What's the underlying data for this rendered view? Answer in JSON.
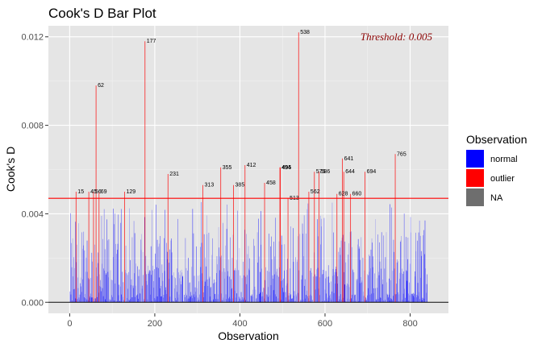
{
  "chart_data": {
    "type": "bar",
    "title": "Cook's D Bar Plot",
    "xlabel": "Observation",
    "ylabel": "Cook's D",
    "xlim": [
      -50,
      890
    ],
    "ylim": [
      -0.0005,
      0.0125
    ],
    "x_ticks": [
      0,
      200,
      400,
      600,
      800
    ],
    "x_tick_labels": [
      "0",
      "200",
      "400",
      "600",
      "800"
    ],
    "y_ticks": [
      0.0,
      0.004,
      0.008,
      0.012
    ],
    "y_tick_labels": [
      "0.000",
      "0.004",
      "0.008",
      "0.012"
    ],
    "threshold": 0.0047,
    "threshold_label": "Threshold: 0.005",
    "grid": true,
    "n_observations": 840,
    "legend": {
      "title": "Observation",
      "position": "right",
      "entries": [
        {
          "label": "normal",
          "color": "#0000ff"
        },
        {
          "label": "outlier",
          "color": "#ff0000"
        },
        {
          "label": "NA",
          "color": "#6e6e6e"
        }
      ]
    },
    "outliers": [
      {
        "obs": 15,
        "value": 0.005,
        "label": "15"
      },
      {
        "obs": 45,
        "value": 0.005,
        "label": "45"
      },
      {
        "obs": 56,
        "value": 0.005,
        "label": "56"
      },
      {
        "obs": 62,
        "value": 0.0098,
        "label": "62"
      },
      {
        "obs": 69,
        "value": 0.005,
        "label": "69"
      },
      {
        "obs": 129,
        "value": 0.005,
        "label": "129"
      },
      {
        "obs": 177,
        "value": 0.0118,
        "label": "177"
      },
      {
        "obs": 231,
        "value": 0.0058,
        "label": "231"
      },
      {
        "obs": 313,
        "value": 0.0053,
        "label": "313"
      },
      {
        "obs": 355,
        "value": 0.0061,
        "label": "355"
      },
      {
        "obs": 385,
        "value": 0.0053,
        "label": "385"
      },
      {
        "obs": 412,
        "value": 0.0062,
        "label": "412"
      },
      {
        "obs": 458,
        "value": 0.0054,
        "label": "458"
      },
      {
        "obs": 494,
        "value": 0.0061,
        "label": "494"
      },
      {
        "obs": 495,
        "value": 0.0061,
        "label": "495"
      },
      {
        "obs": 513,
        "value": 0.0047,
        "label": "513"
      },
      {
        "obs": 538,
        "value": 0.0122,
        "label": "538"
      },
      {
        "obs": 562,
        "value": 0.005,
        "label": "562"
      },
      {
        "obs": 575,
        "value": 0.0059,
        "label": "575"
      },
      {
        "obs": 586,
        "value": 0.0059,
        "label": "586"
      },
      {
        "obs": 628,
        "value": 0.0049,
        "label": "628"
      },
      {
        "obs": 641,
        "value": 0.0065,
        "label": "641"
      },
      {
        "obs": 644,
        "value": 0.0059,
        "label": "644"
      },
      {
        "obs": 660,
        "value": 0.0049,
        "label": "660"
      },
      {
        "obs": 694,
        "value": 0.0059,
        "label": "694"
      },
      {
        "obs": 765,
        "value": 0.0067,
        "label": "765"
      }
    ]
  }
}
